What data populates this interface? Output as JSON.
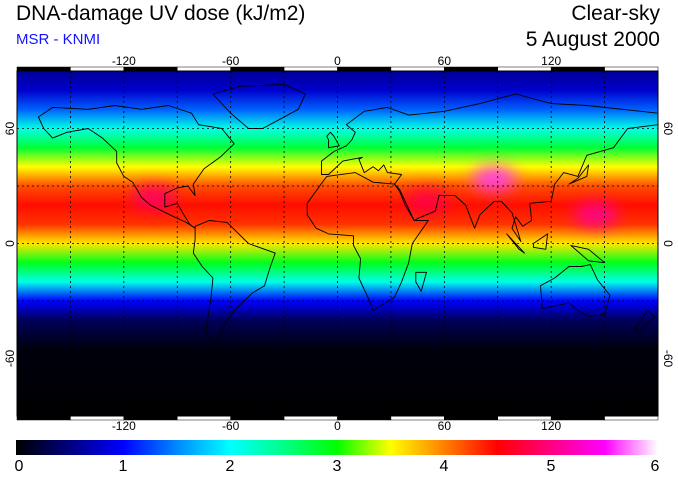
{
  "header": {
    "title": "DNA-damage UV dose (kJ/m2)",
    "source": "MSR - KNMI",
    "condition": "Clear-sky",
    "date": "5 August 2000"
  },
  "map": {
    "projection": "equirectangular",
    "lon_range": [
      -180,
      180
    ],
    "lat_range": [
      -90,
      90
    ],
    "grid_lines": "dashed",
    "lon_ticks": [
      -120,
      -60,
      0,
      60,
      120
    ],
    "lon_tick_labels": [
      "-120",
      "-60",
      "0",
      "60",
      "120"
    ],
    "lat_ticks": [
      60,
      0,
      -60
    ],
    "lat_tick_labels": [
      "60",
      "0",
      "-60"
    ],
    "lat_profile": [
      {
        "lat": 90,
        "dose": 0.6
      },
      {
        "lat": 80,
        "dose": 0.8
      },
      {
        "lat": 70,
        "dose": 1.35
      },
      {
        "lat": 60,
        "dose": 2.1
      },
      {
        "lat": 50,
        "dose": 2.8
      },
      {
        "lat": 40,
        "dose": 3.5
      },
      {
        "lat": 30,
        "dose": 4.2
      },
      {
        "lat": 20,
        "dose": 4.45
      },
      {
        "lat": 10,
        "dose": 4.3
      },
      {
        "lat": 0,
        "dose": 3.6
      },
      {
        "lat": -10,
        "dose": 2.9
      },
      {
        "lat": -20,
        "dose": 2.1
      },
      {
        "lat": -30,
        "dose": 1.0
      },
      {
        "lat": -40,
        "dose": 0.35
      },
      {
        "lat": -55,
        "dose": 0.05
      },
      {
        "lat": -90,
        "dose": 0.0
      }
    ],
    "hotspots": [
      {
        "name": "Tibetan Plateau",
        "lon": 88,
        "lat": 34,
        "dose": 5.6
      },
      {
        "name": "Western Pacific",
        "lon": 145,
        "lat": 15,
        "dose": 5.1
      },
      {
        "name": "Mexico",
        "lon": -103,
        "lat": 24,
        "dose": 4.9
      },
      {
        "name": "Arabia",
        "lon": 50,
        "lat": 22,
        "dose": 4.8
      }
    ]
  },
  "colorbar": {
    "min": 0,
    "max": 6,
    "tick_labels": [
      "0",
      "1",
      "2",
      "3",
      "4",
      "5",
      "6"
    ],
    "stops": [
      {
        "value": 0.0,
        "color": "#000000"
      },
      {
        "value": 0.5,
        "color": "#000080"
      },
      {
        "value": 1.0,
        "color": "#0000ff"
      },
      {
        "value": 1.5,
        "color": "#0088ff"
      },
      {
        "value": 2.0,
        "color": "#00ffff"
      },
      {
        "value": 2.5,
        "color": "#00ff88"
      },
      {
        "value": 3.0,
        "color": "#00ff00"
      },
      {
        "value": 3.5,
        "color": "#ffff00"
      },
      {
        "value": 4.0,
        "color": "#ff8000"
      },
      {
        "value": 4.5,
        "color": "#ff0000"
      },
      {
        "value": 5.0,
        "color": "#ff0080"
      },
      {
        "value": 5.5,
        "color": "#ff00ff"
      },
      {
        "value": 6.0,
        "color": "#ffffff"
      }
    ]
  }
}
